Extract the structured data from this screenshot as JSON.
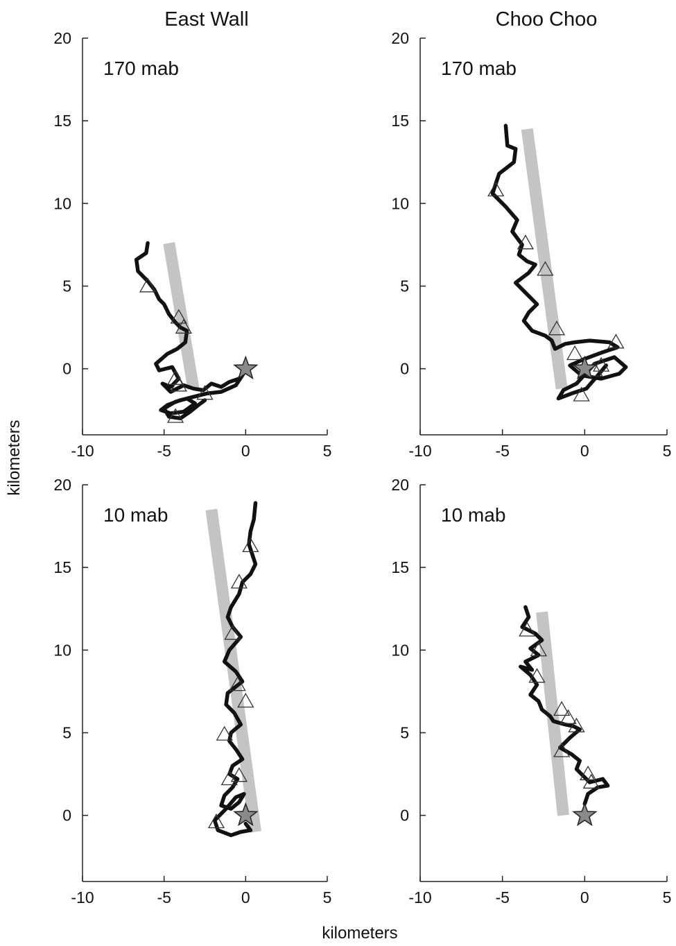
{
  "figure": {
    "col_titles": [
      "East Wall",
      "Choo Choo"
    ],
    "xlabel": "kilometers",
    "ylabel": "kilometers"
  },
  "chart_data": [
    {
      "type": "line",
      "title": "East Wall",
      "label": "170 mab",
      "xlim": [
        -10,
        5
      ],
      "ylim": [
        -4,
        20
      ],
      "xticks": [
        -10,
        -5,
        0,
        5
      ],
      "yticks": [
        0,
        5,
        10,
        15,
        20
      ],
      "band": [
        [
          -4.7,
          7.6
        ],
        [
          -3.2,
          -1.2
        ]
      ],
      "series": [
        {
          "x": [
            -6.0,
            -6.1,
            -6.7,
            -6.6,
            -6.0,
            -5.6,
            -5.3,
            -5.0,
            -4.7,
            -4.3,
            -4.0,
            -3.6,
            -3.7,
            -4.2,
            -4.8,
            -5.5,
            -5.3,
            -4.5,
            -4.1,
            -4.6,
            -5.1,
            -4.6,
            -3.8,
            -3.2,
            -2.6,
            -2.1,
            -1.5,
            -1.0,
            -0.4,
            0.0,
            -0.6,
            -1.5,
            -2.4,
            -3.2,
            -4.0,
            -4.8,
            -5.2,
            -4.6,
            -3.8,
            -3.1,
            -3.6,
            -4.3,
            -5.0,
            -4.7,
            -4.0,
            -3.4,
            -2.9,
            -2.5
          ],
          "y": [
            7.6,
            7.0,
            6.6,
            5.9,
            5.3,
            4.8,
            4.2,
            3.9,
            3.3,
            2.8,
            2.5,
            2.3,
            1.6,
            1.2,
            0.9,
            0.3,
            -0.1,
            0.1,
            -0.6,
            -1.1,
            -0.9,
            -1.4,
            -1.0,
            -1.2,
            -1.3,
            -0.9,
            -1.1,
            -0.8,
            -0.6,
            -0.1,
            -1.0,
            -1.4,
            -1.5,
            -1.7,
            -1.9,
            -2.2,
            -2.5,
            -2.7,
            -2.6,
            -2.1,
            -1.8,
            -2.0,
            -2.4,
            -2.9,
            -3.0,
            -2.6,
            -2.2,
            -1.9
          ]
        }
      ],
      "markers": {
        "triangles": [
          [
            -6.0,
            5.0
          ],
          [
            -4.1,
            3.1
          ],
          [
            -3.8,
            2.5
          ],
          [
            -4.3,
            -0.6
          ],
          [
            -4.3,
            -2.9
          ],
          [
            -2.5,
            -1.5
          ],
          [
            -4.1,
            -1.0
          ]
        ],
        "star": [
          0,
          0
        ]
      }
    },
    {
      "type": "line",
      "title": "Choo Choo",
      "label": "170 mab",
      "xlim": [
        -10,
        5
      ],
      "ylim": [
        -4,
        20
      ],
      "xticks": [
        -10,
        -5,
        0,
        5
      ],
      "yticks": [
        0,
        5,
        10,
        15,
        20
      ],
      "band": [
        [
          -3.5,
          14.5
        ],
        [
          -1.4,
          -1.2
        ]
      ],
      "series": [
        {
          "x": [
            -4.8,
            -4.7,
            -4.2,
            -4.3,
            -5.2,
            -5.6,
            -4.8,
            -4.1,
            -4.4,
            -3.8,
            -4.0,
            -3.5,
            -3.0,
            -3.4,
            -4.2,
            -3.6,
            -2.9,
            -3.4,
            -3.7,
            -3.2,
            -2.4,
            -2.0,
            -1.8,
            -1.2,
            -0.6,
            0.3,
            1.5,
            2.0,
            1.1,
            0.0,
            -0.9,
            -0.2,
            1.0,
            2.1,
            2.5,
            1.8,
            0.6,
            -0.5,
            -1.3,
            -1.6,
            -0.8,
            0.1,
            0.8,
            1.3
          ],
          "y": [
            14.7,
            13.5,
            13.3,
            12.5,
            11.8,
            10.6,
            9.8,
            9.0,
            8.3,
            7.5,
            6.9,
            6.5,
            6.3,
            5.8,
            5.2,
            4.6,
            3.9,
            3.4,
            2.9,
            2.3,
            2.0,
            1.7,
            1.2,
            1.5,
            1.6,
            1.7,
            1.6,
            1.3,
            1.0,
            0.6,
            0.2,
            -0.4,
            -0.6,
            -0.3,
            0.1,
            0.7,
            0.3,
            -0.9,
            -1.3,
            -1.8,
            -1.5,
            -1.2,
            -0.4,
            0.2
          ]
        }
      ],
      "markers": {
        "triangles": [
          [
            -5.4,
            10.8
          ],
          [
            -3.6,
            7.6
          ],
          [
            -2.4,
            6.0
          ],
          [
            -1.7,
            2.4
          ],
          [
            -0.6,
            0.9
          ],
          [
            1.9,
            1.6
          ],
          [
            1.0,
            0.2
          ],
          [
            -0.2,
            -1.6
          ],
          [
            0.6,
            -0.1
          ]
        ],
        "star": [
          0,
          0
        ]
      }
    },
    {
      "type": "line",
      "title": "",
      "label": "10 mab",
      "xlim": [
        -10,
        5
      ],
      "ylim": [
        -4,
        20
      ],
      "xticks": [
        -10,
        -5,
        0,
        5
      ],
      "yticks": [
        0,
        5,
        10,
        15,
        20
      ],
      "band": [
        [
          -2.1,
          18.5
        ],
        [
          0.6,
          -1.0
        ]
      ],
      "series": [
        {
          "x": [
            0.6,
            0.5,
            0.3,
            0.2,
            0.6,
            0.3,
            -0.2,
            -0.4,
            -0.9,
            -1.1,
            -0.8,
            -0.3,
            -1.0,
            -1.3,
            -0.6,
            -0.2,
            -1.1,
            -1.2,
            -0.7,
            -0.3,
            -0.9,
            -1.0,
            -0.6,
            -0.2,
            -0.8,
            -1.0,
            -0.5,
            -0.8,
            -1.3,
            -1.5,
            -0.9,
            -0.4,
            -0.1,
            -0.6,
            -1.2,
            -1.9,
            -1.7,
            -0.9,
            -0.3,
            0.3,
            0.0
          ],
          "y": [
            18.9,
            17.9,
            17.2,
            16.4,
            15.2,
            14.6,
            14.1,
            13.4,
            12.6,
            12.0,
            11.4,
            10.8,
            10.0,
            9.3,
            8.7,
            8.1,
            7.4,
            6.7,
            6.2,
            5.5,
            5.0,
            4.5,
            4.0,
            3.4,
            3.0,
            2.5,
            2.2,
            1.7,
            1.2,
            0.6,
            0.4,
            0.8,
            1.3,
            1.1,
            0.4,
            -0.3,
            -0.9,
            -1.2,
            -1.0,
            -0.9,
            -0.5
          ]
        }
      ],
      "markers": {
        "triangles": [
          [
            0.3,
            16.3
          ],
          [
            -0.4,
            14.1
          ],
          [
            -0.8,
            11.0
          ],
          [
            -0.5,
            7.9
          ],
          [
            0.0,
            6.9
          ],
          [
            -1.3,
            4.9
          ],
          [
            -1.0,
            2.2
          ],
          [
            -0.4,
            2.4
          ],
          [
            -1.8,
            -0.4
          ]
        ],
        "star": [
          0,
          0
        ]
      }
    },
    {
      "type": "line",
      "title": "",
      "label": "10 mab",
      "xlim": [
        -10,
        5
      ],
      "ylim": [
        -4,
        20
      ],
      "xticks": [
        -10,
        -5,
        0,
        5
      ],
      "yticks": [
        0,
        5,
        10,
        15,
        20
      ],
      "band": [
        [
          -2.6,
          12.3
        ],
        [
          -1.3,
          0.0
        ]
      ],
      "series": [
        {
          "x": [
            -3.6,
            -3.4,
            -3.8,
            -3.0,
            -2.6,
            -3.3,
            -2.8,
            -3.6,
            -3.2,
            -3.9,
            -3.3,
            -2.9,
            -3.3,
            -2.8,
            -2.6,
            -2.1,
            -1.9,
            -1.2,
            -0.7,
            -0.3,
            -0.9,
            -1.5,
            -0.8,
            -0.3,
            -0.5,
            -0.1,
            0.3,
            1.1,
            1.4,
            0.8,
            0.2,
            0.0
          ],
          "y": [
            12.6,
            12.0,
            11.4,
            11.0,
            10.6,
            10.1,
            9.7,
            9.3,
            8.8,
            9.0,
            8.5,
            7.9,
            7.3,
            6.9,
            6.4,
            6.0,
            5.7,
            5.5,
            5.4,
            5.2,
            4.7,
            4.1,
            3.7,
            3.3,
            2.8,
            2.4,
            2.0,
            2.2,
            1.8,
            1.7,
            1.3,
            0.7
          ]
        }
      ],
      "markers": {
        "triangles": [
          [
            -3.5,
            11.2
          ],
          [
            -2.8,
            10.0
          ],
          [
            -2.9,
            8.4
          ],
          [
            -1.4,
            6.4
          ],
          [
            -1.0,
            5.9
          ],
          [
            -0.5,
            5.4
          ],
          [
            -1.4,
            3.9
          ],
          [
            0.2,
            2.5
          ],
          [
            0.4,
            2.0
          ]
        ],
        "star": [
          0,
          0
        ]
      }
    }
  ]
}
